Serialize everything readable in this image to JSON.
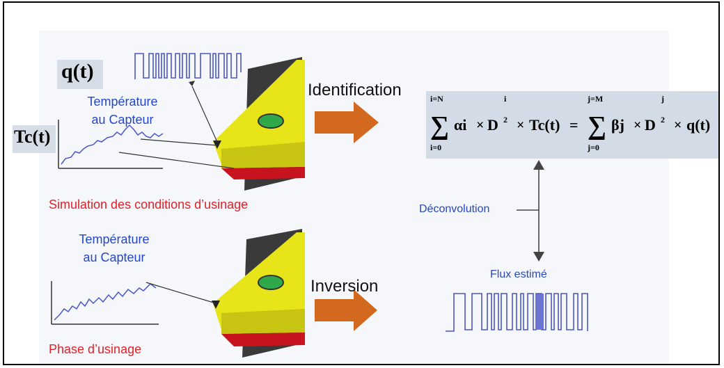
{
  "top": {
    "q_label": "q(t)",
    "tc_label": "Tc(t)",
    "temp_label_line1": "Température",
    "temp_label_line2": "au Capteur",
    "caption": "Simulation des conditions d’usinage"
  },
  "bottom": {
    "temp_label_line1": "Température",
    "temp_label_line2": "au Capteur",
    "caption": "Phase d’usinage"
  },
  "arrows": {
    "identification": "Identification",
    "inversion": "Inversion"
  },
  "equation": {
    "lhs_upper": "i=N",
    "lhs_lower": "i=0",
    "lhs_coef": "αi",
    "lhs_exp": "i",
    "lhs_exp_den": "2",
    "lhs_term": "Tc(t)",
    "rhs_upper": "j=M",
    "rhs_lower": "j=0",
    "rhs_coef": "βj",
    "rhs_exp": "j",
    "rhs_exp_den": "2",
    "rhs_term": "q(t)"
  },
  "deconvolution_label": "Déconvolution",
  "flux_label": "Flux estimé",
  "colors": {
    "arrow": "#d2691e",
    "signal": "#4a55c8",
    "tool_yellow": "#e8e41a",
    "tool_dark": "#3a3a3a",
    "tool_red": "#c8141e"
  }
}
